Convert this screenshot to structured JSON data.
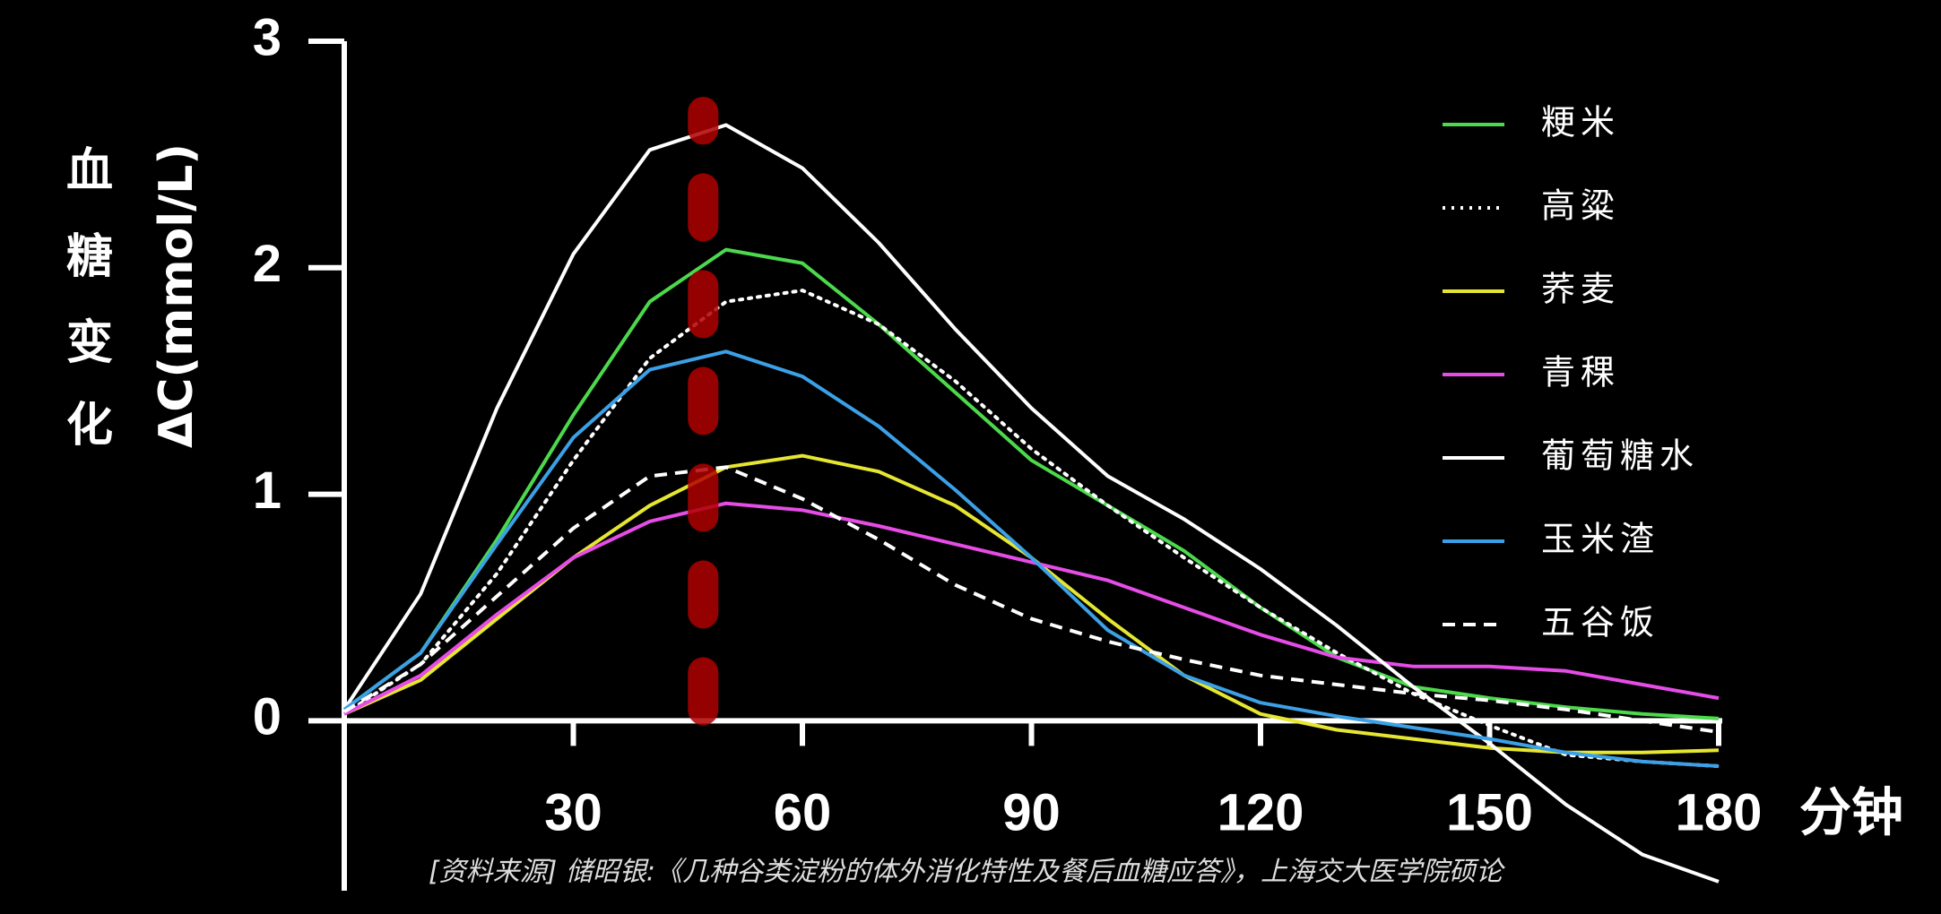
{
  "chart_data": {
    "type": "line",
    "y_label_main": "血糖变化",
    "y_label_unit": "ΔC(mmol/L)",
    "x_label": "分钟",
    "source": "[资料来源] 储昭银:《几种谷类淀粉的体外消化特性及餐后血糖应答》，上海交大医学院硕论",
    "x": [
      0,
      10,
      20,
      30,
      40,
      50,
      60,
      70,
      80,
      90,
      100,
      110,
      120,
      130,
      140,
      150,
      160,
      170,
      180
    ],
    "xlim": [
      0,
      180
    ],
    "xticks": [
      30,
      60,
      90,
      120,
      150,
      180
    ],
    "ylim": [
      -0.75,
      3
    ],
    "yticks": [
      0,
      1,
      2,
      3
    ],
    "highlight_x": 47,
    "highlight_color": "#b00000",
    "series": [
      {
        "name": "粳米",
        "color": "#4cd94c",
        "dash": "solid",
        "values": [
          0.05,
          0.3,
          0.8,
          1.35,
          1.85,
          2.08,
          2.02,
          1.75,
          1.45,
          1.15,
          0.95,
          0.75,
          0.5,
          0.28,
          0.15,
          0.1,
          0.06,
          0.03,
          0.01
        ]
      },
      {
        "name": "高粱",
        "color": "#ffffff",
        "dash": "dotted",
        "values": [
          0.03,
          0.25,
          0.65,
          1.15,
          1.6,
          1.85,
          1.9,
          1.75,
          1.5,
          1.2,
          0.95,
          0.72,
          0.5,
          0.3,
          0.12,
          -0.02,
          -0.15,
          -0.18,
          -0.2
        ]
      },
      {
        "name": "荞麦",
        "color": "#e6e632",
        "dash": "solid",
        "values": [
          0.03,
          0.18,
          0.45,
          0.72,
          0.95,
          1.12,
          1.17,
          1.1,
          0.95,
          0.72,
          0.45,
          0.2,
          0.03,
          -0.04,
          -0.08,
          -0.12,
          -0.14,
          -0.14,
          -0.13
        ]
      },
      {
        "name": "青稞",
        "color": "#e64ce6",
        "dash": "solid",
        "values": [
          0.03,
          0.2,
          0.47,
          0.72,
          0.88,
          0.96,
          0.93,
          0.86,
          0.78,
          0.7,
          0.62,
          0.5,
          0.38,
          0.28,
          0.24,
          0.24,
          0.22,
          0.16,
          0.1
        ]
      },
      {
        "name": "葡萄糖水",
        "color": "#ffffff",
        "dash": "solid",
        "values": [
          0.05,
          0.56,
          1.38,
          2.06,
          2.52,
          2.63,
          2.44,
          2.11,
          1.73,
          1.38,
          1.08,
          0.89,
          0.67,
          0.42,
          0.15,
          -0.1,
          -0.37,
          -0.59,
          -0.71
        ]
      },
      {
        "name": "玉米渣",
        "color": "#3ca0e6",
        "dash": "solid",
        "values": [
          0.05,
          0.3,
          0.78,
          1.25,
          1.55,
          1.63,
          1.52,
          1.3,
          1.02,
          0.72,
          0.4,
          0.2,
          0.08,
          0.02,
          -0.03,
          -0.08,
          -0.14,
          -0.18,
          -0.2
        ]
      },
      {
        "name": "五谷饭",
        "color": "#ffffff",
        "dash": "dashed",
        "values": [
          0.04,
          0.25,
          0.55,
          0.85,
          1.08,
          1.12,
          0.98,
          0.8,
          0.6,
          0.45,
          0.35,
          0.27,
          0.2,
          0.16,
          0.12,
          0.09,
          0.05,
          0.0,
          -0.05
        ]
      }
    ]
  }
}
